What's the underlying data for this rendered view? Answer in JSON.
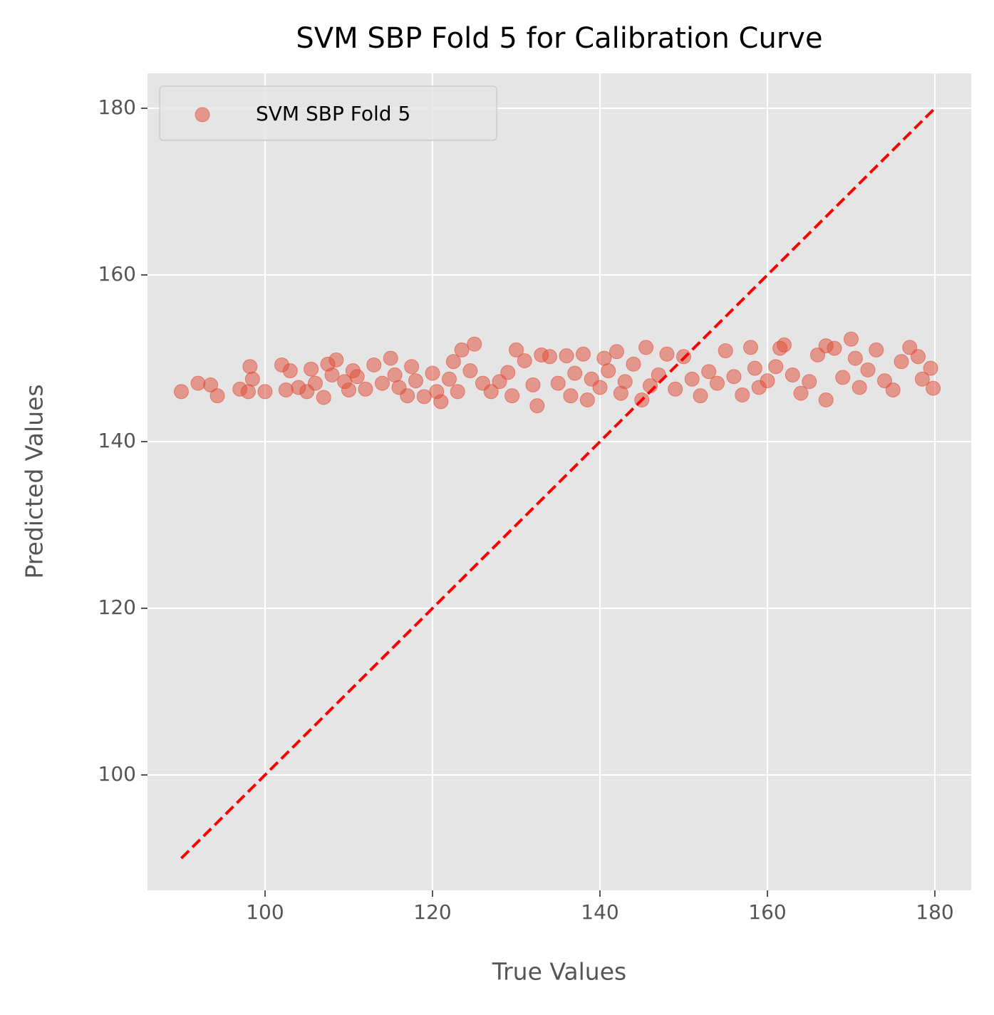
{
  "chart_data": {
    "type": "scatter",
    "title": "SVM SBP Fold 5 for Calibration Curve",
    "xlabel": "True Values",
    "ylabel": "Predicted Values",
    "series": [
      {
        "name": "SVM SBP Fold 5",
        "color": "#e24a33",
        "x": [
          90,
          92,
          93.5,
          94.3,
          97,
          98,
          98.2,
          98.5,
          100,
          102,
          102.5,
          103,
          104,
          105,
          105.5,
          106,
          107,
          107.5,
          108.5,
          108,
          109.5,
          110,
          110.5,
          111,
          112,
          113,
          114,
          115,
          115.5,
          116,
          117,
          117.5,
          118,
          119,
          120,
          120.5,
          121,
          122,
          122.5,
          123,
          123.5,
          124.5,
          125,
          126,
          127,
          128,
          129,
          129.5,
          130,
          131,
          132,
          132.5,
          133,
          134,
          135,
          136,
          136.5,
          137,
          138,
          138.5,
          139,
          140,
          140.5,
          141,
          142,
          142.5,
          143,
          144,
          145,
          145.5,
          146,
          147,
          148,
          149,
          150,
          151,
          152,
          153,
          154,
          155,
          156,
          157,
          158,
          158.5,
          159,
          160,
          161,
          161.5,
          162,
          163,
          164,
          165,
          166,
          167,
          167,
          168,
          169,
          170,
          170.5,
          171,
          172,
          173,
          174,
          175,
          176,
          177,
          178,
          178.5,
          179.5,
          179.8
        ],
        "y": [
          146,
          147,
          146.8,
          145.5,
          146.3,
          146,
          149,
          147.5,
          146,
          149.2,
          146.2,
          148.5,
          146.5,
          146,
          148.7,
          147,
          145.3,
          149.3,
          149.8,
          148,
          147.2,
          146.2,
          148.5,
          147.8,
          146.3,
          149.2,
          147,
          150,
          148,
          146.5,
          145.5,
          149,
          147.3,
          145.4,
          148.2,
          146,
          144.8,
          147.5,
          149.6,
          146,
          151,
          148.5,
          151.7,
          147,
          146,
          147.2,
          148.3,
          145.5,
          151,
          149.7,
          146.8,
          144.3,
          150.4,
          150.2,
          147,
          150.3,
          145.5,
          148.2,
          150.5,
          145,
          147.5,
          146.5,
          150,
          148.5,
          150.8,
          145.8,
          147.2,
          149.3,
          145,
          151.3,
          146.7,
          148,
          150.5,
          146.3,
          150.2,
          147.5,
          145.5,
          148.4,
          147,
          150.9,
          147.8,
          145.6,
          151.3,
          148.8,
          146.5,
          147.3,
          149,
          151.2,
          151.6,
          148,
          145.8,
          147.2,
          150.4,
          145,
          151.5,
          151.2,
          147.7,
          152.3,
          150,
          146.5,
          148.6,
          151,
          147.3,
          146.2,
          149.6,
          151.3,
          150.2,
          147.5,
          148.8,
          146.4
        ]
      }
    ],
    "reference_line": {
      "x": [
        90,
        180
      ],
      "y": [
        90,
        180
      ],
      "color": "#ff0000",
      "style": "dashed"
    },
    "xlim": [
      85.96,
      184.34
    ],
    "ylim": [
      86.15,
      184.19
    ],
    "xticks": [
      100,
      120,
      140,
      160,
      180
    ],
    "yticks": [
      100,
      120,
      140,
      160,
      180
    ],
    "grid": true,
    "legend": "upper-left"
  }
}
